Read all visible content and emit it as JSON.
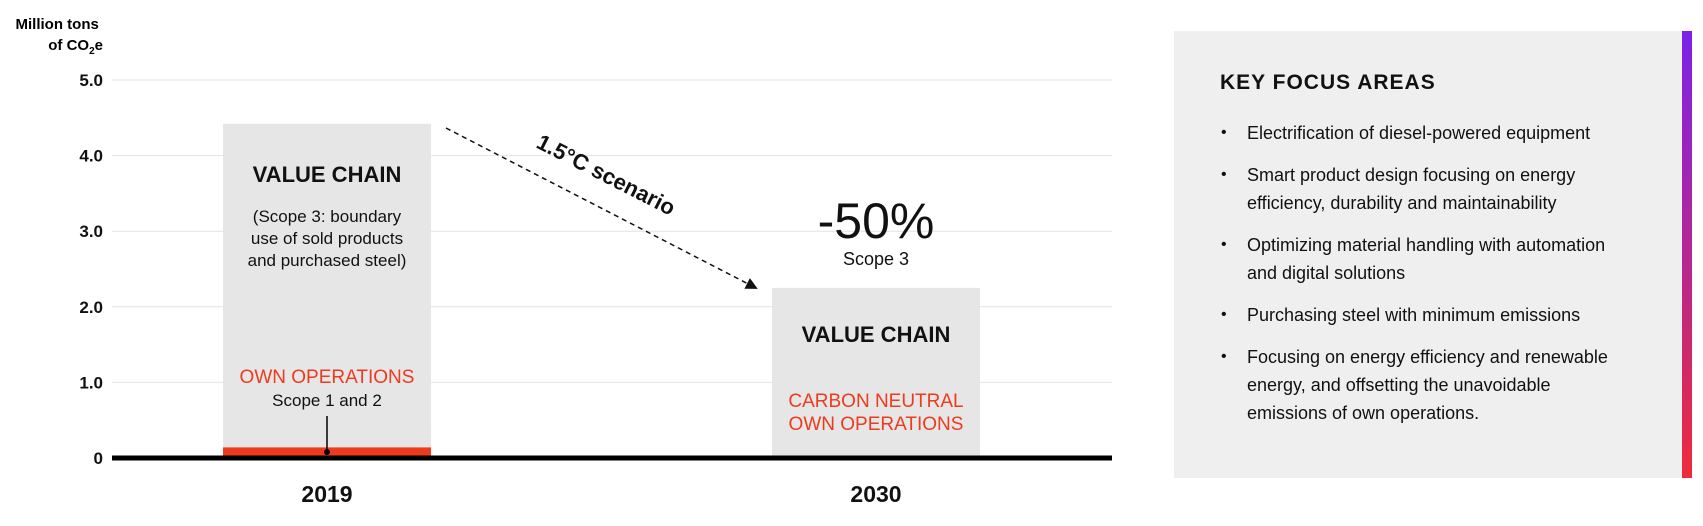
{
  "colors": {
    "bar_fill": "#e6e6e6",
    "own_operations": "#ee3a1d",
    "baseline": "#000000",
    "grid": "#e4e4e4",
    "panel_background": "#efefef",
    "accent_gradient": [
      "#7b22ea",
      "#ee2b3b"
    ]
  },
  "chart_data": {
    "type": "bar",
    "ylabel_line1": "Million tons",
    "ylabel_line2_prefix": "of CO",
    "ylabel_line2_sub": "2",
    "ylabel_line2_suffix": "e",
    "ylim": [
      0,
      5
    ],
    "yticks": [
      {
        "value": 0,
        "label": "0"
      },
      {
        "value": 1,
        "label": "1.0"
      },
      {
        "value": 2,
        "label": "2.0"
      },
      {
        "value": 3,
        "label": "3.0"
      },
      {
        "value": 4,
        "label": "4.0"
      },
      {
        "value": 5,
        "label": "5.0"
      }
    ],
    "grid": true,
    "categories": [
      "2019",
      "2030"
    ],
    "series": [
      {
        "key": "value_chain",
        "values": [
          4.42,
          2.25
        ]
      },
      {
        "key": "own_operations",
        "values": [
          0.14,
          0
        ]
      }
    ],
    "bar_labels": [
      {
        "title": "VALUE CHAIN",
        "detail": [
          "(Scope 3: boundary",
          "use of sold products",
          "and purchased steel)"
        ],
        "own_title": [
          "OWN OPERATIONS"
        ],
        "own_detail": "Scope 1 and 2"
      },
      {
        "title": "VALUE CHAIN",
        "detail": [],
        "own_title": [
          "CARBON NEUTRAL",
          "OWN OPERATIONS"
        ],
        "own_detail": ""
      }
    ],
    "annotations": {
      "scenario": "1.5°C scenario",
      "reduction": "-50%",
      "reduction_scope": "Scope 3"
    }
  },
  "focus": {
    "title": "KEY FOCUS AREAS",
    "bullet": "•",
    "items": [
      [
        "Electrification of diesel-powered equipment"
      ],
      [
        "Smart product design focusing on energy",
        "efficiency, durability and maintainability"
      ],
      [
        "Optimizing material handling with automation",
        "and digital solutions"
      ],
      [
        "Purchasing steel with minimum emissions"
      ],
      [
        "Focusing on energy efficiency and renewable",
        "energy, and offsetting the unavoidable",
        "emissions of own operations."
      ]
    ]
  }
}
